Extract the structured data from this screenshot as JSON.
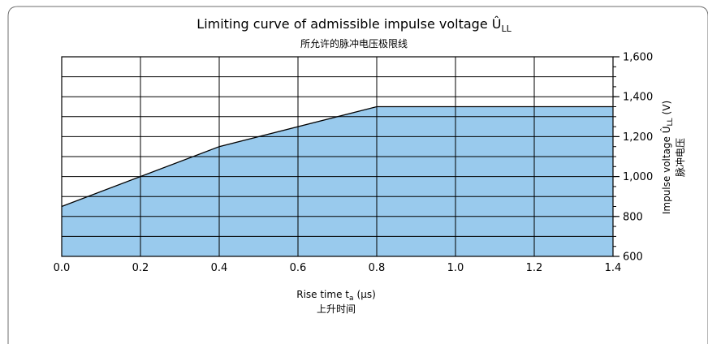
{
  "chart_data": {
    "type": "area",
    "title": "Limiting curve of admissible impulse voltage Û",
    "title_subscript": "LL",
    "subtitle": "所允许的脉冲电压极限线",
    "xlabel": "Rise time t",
    "xlabel_subscript": "a",
    "xlabel_unit": "(μs)",
    "xlabel_sub": "上升时间",
    "ylabel": "Impulse voltage Û",
    "ylabel_subscript": "LL",
    "ylabel_unit": "(V)",
    "ylabel_sub": "脉冲电压",
    "xlim": [
      0,
      1.4
    ],
    "ylim": [
      600,
      1600
    ],
    "x_ticks": [
      {
        "value": 0.0,
        "label": "0.0"
      },
      {
        "value": 0.2,
        "label": "0.2"
      },
      {
        "value": 0.4,
        "label": "0.4"
      },
      {
        "value": 0.6,
        "label": "0.6"
      },
      {
        "value": 0.8,
        "label": "0.8"
      },
      {
        "value": 1.0,
        "label": "1.0"
      },
      {
        "value": 1.2,
        "label": "1.2"
      },
      {
        "value": 1.4,
        "label": "1.4"
      }
    ],
    "y_ticks": [
      {
        "value": 600,
        "label": "600"
      },
      {
        "value": 800,
        "label": "800"
      },
      {
        "value": 1000,
        "label": "1,000"
      },
      {
        "value": 1200,
        "label": "1,200"
      },
      {
        "value": 1400,
        "label": "1,400"
      },
      {
        "value": 1600,
        "label": "1,600"
      }
    ],
    "y_minor_step": 100,
    "grid": true,
    "y_axis_side": "right",
    "fill_color": "#99CAED",
    "series": [
      {
        "x": [
          0.0,
          0.4,
          0.8,
          1.4
        ],
        "y": [
          850,
          1150,
          1350,
          1350
        ]
      }
    ]
  }
}
